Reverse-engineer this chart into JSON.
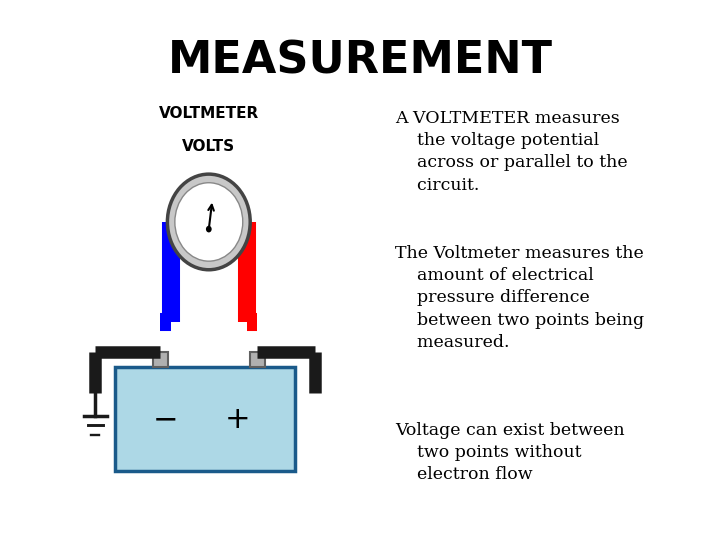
{
  "title": "MEASUREMENT",
  "title_fontsize": 32,
  "title_fontweight": "bold",
  "bg_color": "#ffffff",
  "text_color": "#000000",
  "bullet1": "A VOLTMETER measures\n    the voltage potential\n    across or parallel to the\n    circuit.",
  "bullet2": "The Voltmeter measures the\n    amount of electrical\n    pressure difference\n    between two points being\n    measured.",
  "bullet3": "Voltage can exist between\n    two points without\n    electron flow",
  "text_fontsize": 12.5
}
